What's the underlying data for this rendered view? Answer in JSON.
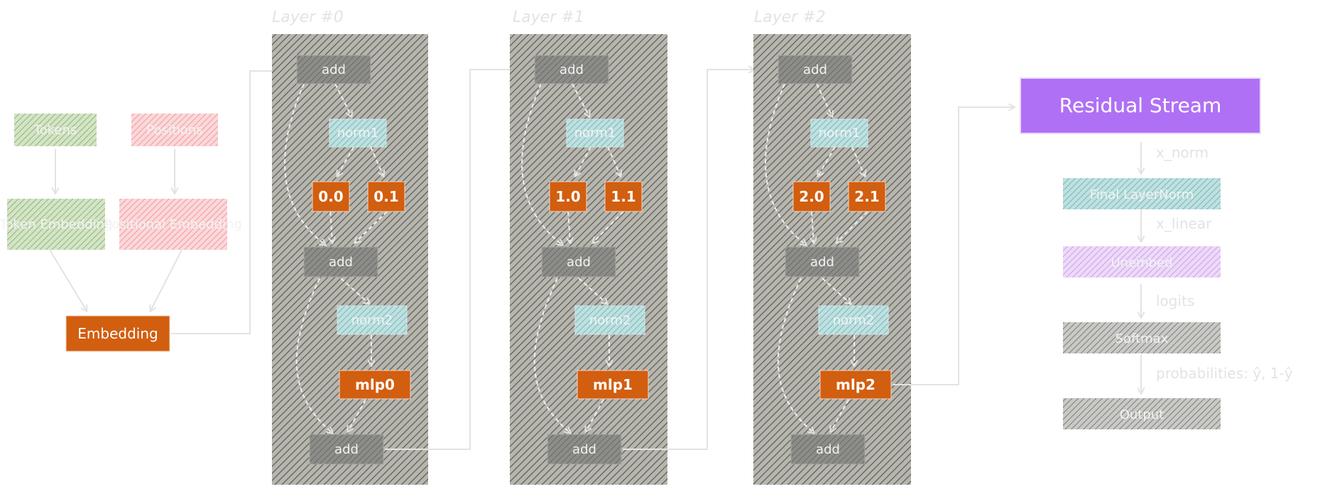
{
  "inputs": {
    "tokens": "Tokens",
    "positions": "Positions",
    "token_embedding": "Token Embedding",
    "position_embedding": "Positional Embedding",
    "embedding": "Embedding"
  },
  "layers": [
    {
      "title": "Layer #0",
      "add_in": "add",
      "norm1": "norm1",
      "head_a": "0.0",
      "head_b": "0.1",
      "add_mid": "add",
      "norm2": "norm2",
      "mlp": "mlp0",
      "add_out": "add"
    },
    {
      "title": "Layer #1",
      "add_in": "add",
      "norm1": "norm1",
      "head_a": "1.0",
      "head_b": "1.1",
      "add_mid": "add",
      "norm2": "norm2",
      "mlp": "mlp1",
      "add_out": "add"
    },
    {
      "title": "Layer #2",
      "add_in": "add",
      "norm1": "norm1",
      "head_a": "2.0",
      "head_b": "2.1",
      "add_mid": "add",
      "norm2": "norm2",
      "mlp": "mlp2",
      "add_out": "add"
    }
  ],
  "output": {
    "residual_stream": "Residual Stream",
    "final_layernorm": "Final LayerNorm",
    "unembed": "Unembed",
    "softmax": "Softmax",
    "output": "Output",
    "edge_labels": [
      "x_norm",
      "x_linear",
      "logits",
      "probabilities: ŷ, 1-ŷ"
    ]
  },
  "colors": {
    "token_green": "#a3c48e",
    "position_pink": "#f3a3a8",
    "orange": "#d25e10",
    "teal": "#8ec5c6",
    "gray": "#8a8a85",
    "layer_bg": "#8f8d84",
    "purple": "#b070f5",
    "lavender": "#d8b5ef",
    "edge": "#e3e3e3"
  }
}
